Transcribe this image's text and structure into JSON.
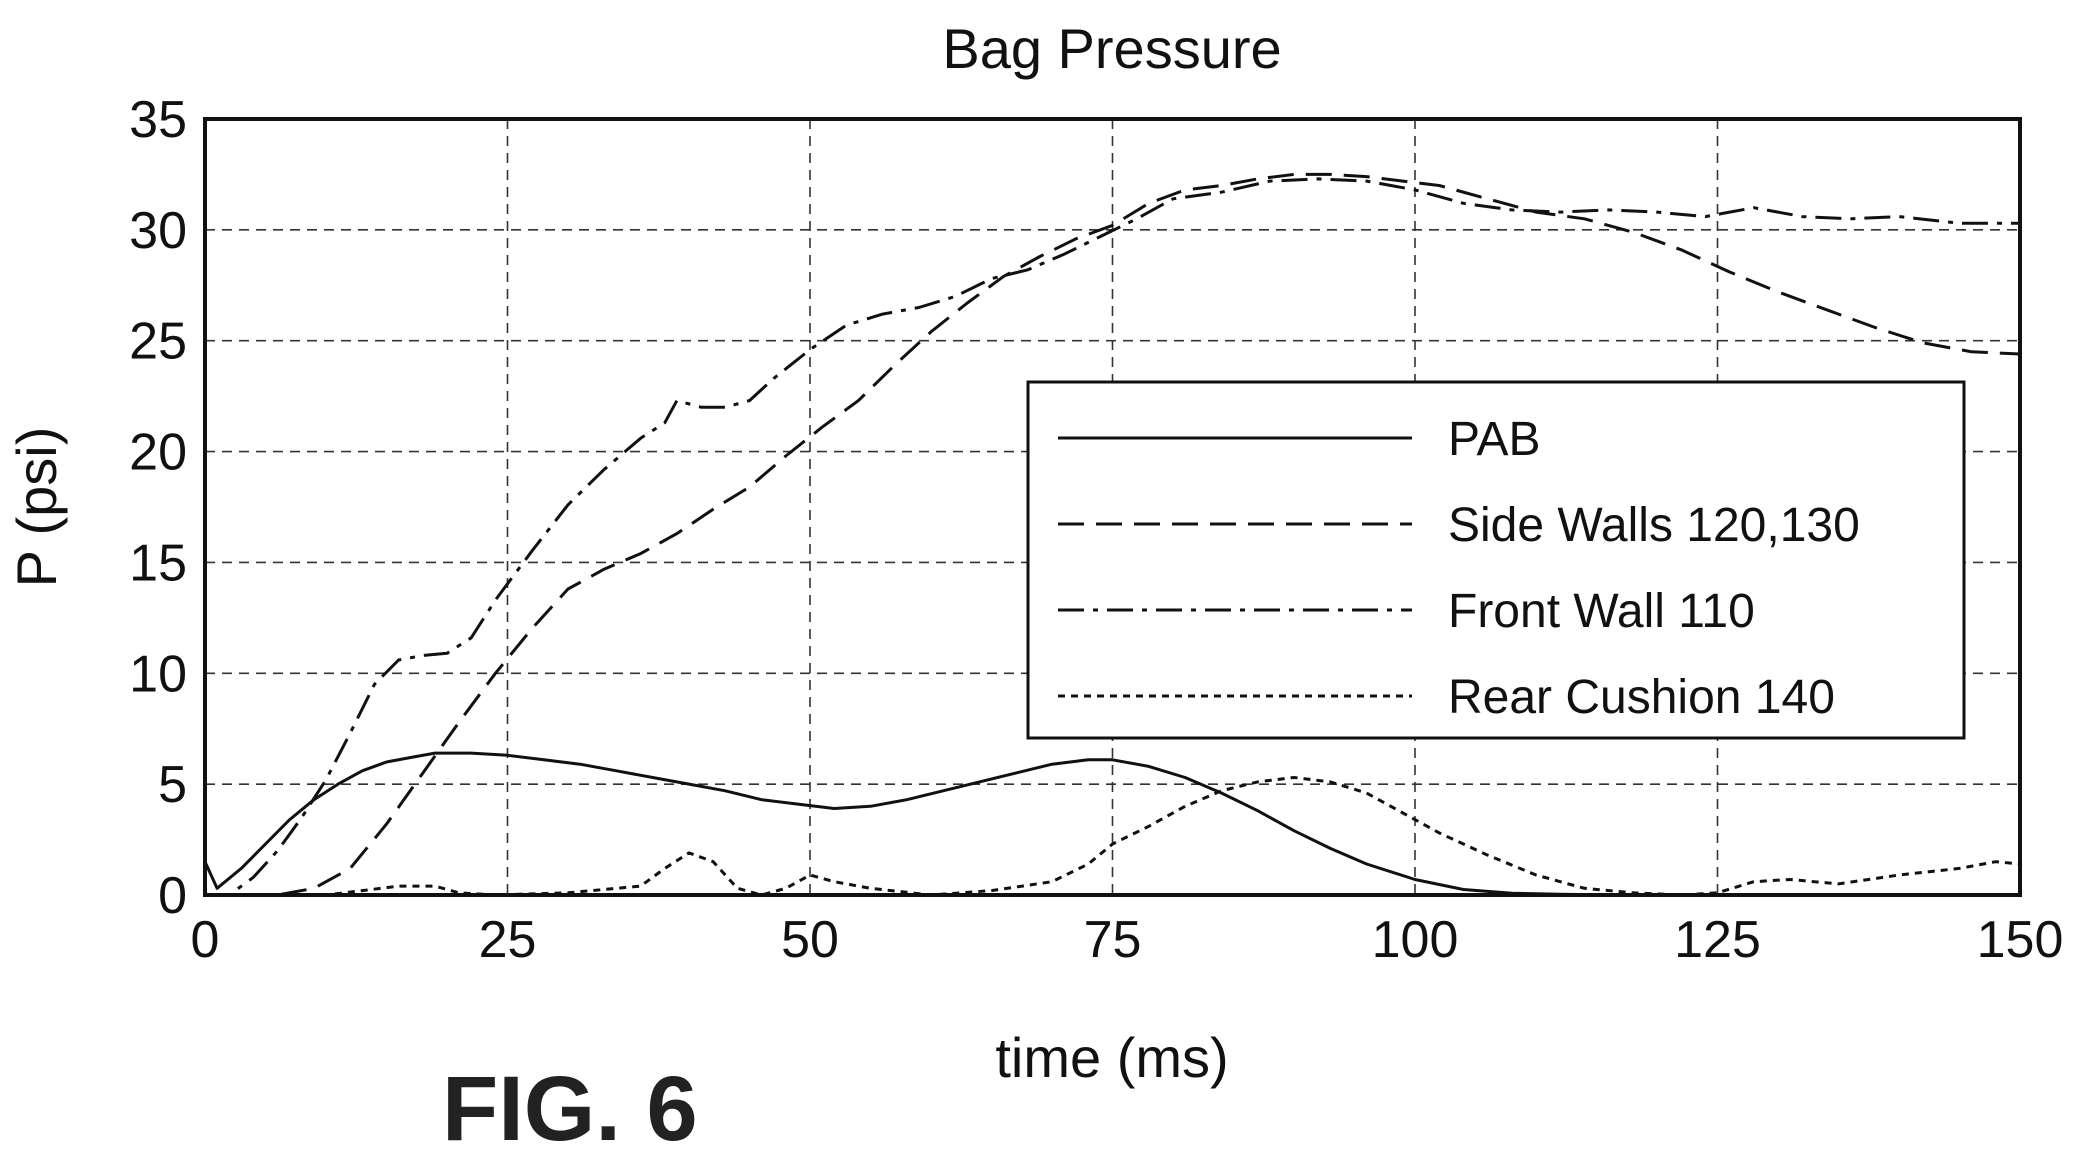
{
  "figure_label": "FIG. 6",
  "chart_data": {
    "type": "line",
    "title": "Bag Pressure",
    "xlabel": "time (ms)",
    "ylabel": "P (psi)",
    "xlim": [
      0,
      150
    ],
    "ylim": [
      0,
      35
    ],
    "xticks": [
      0,
      25,
      50,
      75,
      100,
      125,
      150
    ],
    "yticks": [
      0,
      5,
      10,
      15,
      20,
      25,
      30,
      35
    ],
    "grid": true,
    "legend_position": "center-right",
    "series": [
      {
        "name": "PAB",
        "style": "solid",
        "x": [
          0,
          1,
          3,
          5,
          7,
          9,
          11,
          13,
          15,
          17,
          19,
          22,
          25,
          28,
          31,
          34,
          37,
          40,
          43,
          46,
          49,
          52,
          55,
          58,
          61,
          64,
          67,
          70,
          73,
          75,
          78,
          81,
          84,
          87,
          90,
          93,
          96,
          100,
          104,
          108,
          112,
          116,
          120,
          125,
          130,
          140,
          150
        ],
        "y": [
          1.5,
          0.3,
          1.2,
          2.3,
          3.4,
          4.3,
          5.0,
          5.6,
          6.0,
          6.2,
          6.4,
          6.4,
          6.3,
          6.1,
          5.9,
          5.6,
          5.3,
          5.0,
          4.7,
          4.3,
          4.1,
          3.9,
          4.0,
          4.3,
          4.7,
          5.1,
          5.5,
          5.9,
          6.1,
          6.1,
          5.8,
          5.3,
          4.6,
          3.8,
          2.9,
          2.1,
          1.4,
          0.7,
          0.25,
          0.08,
          0.03,
          0,
          0,
          0,
          0,
          0,
          0
        ]
      },
      {
        "name": "Side Walls 120,130",
        "style": "dashed",
        "x": [
          0,
          3,
          6,
          9,
          12,
          15,
          18,
          21,
          24,
          27,
          30,
          33,
          36,
          39,
          42,
          45,
          48,
          51,
          54,
          57,
          60,
          63,
          66,
          69,
          72,
          75,
          78,
          81,
          84,
          87,
          90,
          93,
          96,
          99,
          102,
          106,
          110,
          114,
          118,
          122,
          126,
          130,
          134,
          138,
          142,
          146,
          150
        ],
        "y": [
          0,
          0,
          0,
          0.3,
          1.2,
          3.2,
          5.5,
          7.8,
          10.0,
          12.0,
          13.8,
          14.7,
          15.4,
          16.3,
          17.4,
          18.4,
          19.8,
          21.1,
          22.3,
          23.9,
          25.4,
          26.7,
          27.9,
          28.8,
          29.6,
          30.2,
          31.2,
          31.8,
          32.0,
          32.3,
          32.5,
          32.5,
          32.4,
          32.2,
          32.0,
          31.4,
          30.8,
          30.5,
          29.9,
          29.1,
          28.1,
          27.2,
          26.4,
          25.6,
          24.9,
          24.5,
          24.4
        ]
      },
      {
        "name": "Front Wall 110",
        "style": "dash-dot",
        "x": [
          0,
          2,
          4,
          6,
          8,
          10,
          12,
          14,
          16,
          18,
          20,
          22,
          24,
          27,
          30,
          33,
          36,
          38,
          39,
          41,
          43,
          45,
          47,
          50,
          53,
          56,
          59,
          62,
          65,
          68,
          71,
          74,
          77,
          80,
          84,
          88,
          92,
          96,
          100,
          104,
          108,
          112,
          116,
          120,
          124,
          128,
          132,
          136,
          140,
          145,
          150
        ],
        "y": [
          0,
          0,
          0.8,
          2.0,
          3.5,
          5.2,
          7.3,
          9.5,
          10.6,
          10.8,
          10.9,
          11.6,
          13.3,
          15.5,
          17.6,
          19.2,
          20.6,
          21.3,
          22.3,
          22.0,
          22.0,
          22.3,
          23.3,
          24.6,
          25.7,
          26.2,
          26.5,
          27.0,
          27.8,
          28.2,
          28.9,
          29.7,
          30.5,
          31.4,
          31.7,
          32.2,
          32.3,
          32.2,
          31.8,
          31.2,
          30.9,
          30.8,
          30.9,
          30.8,
          30.6,
          31.0,
          30.6,
          30.5,
          30.6,
          30.3,
          30.3
        ]
      },
      {
        "name": "Rear Cushion 140",
        "style": "dotted",
        "x": [
          0,
          5,
          10,
          13,
          16,
          19,
          21,
          24,
          30,
          36,
          38,
          40,
          42,
          44,
          46,
          48,
          50,
          52,
          55,
          60,
          65,
          70,
          73,
          75,
          78,
          81,
          84,
          87,
          90,
          93,
          96,
          99,
          102,
          106,
          110,
          114,
          118,
          122,
          125,
          128,
          131,
          135,
          140,
          145,
          148,
          150
        ],
        "y": [
          0,
          0,
          0,
          0.2,
          0.4,
          0.4,
          0.1,
          0,
          0.1,
          0.4,
          1.2,
          1.9,
          1.5,
          0.3,
          0,
          0.3,
          0.9,
          0.6,
          0.3,
          0,
          0.2,
          0.6,
          1.4,
          2.3,
          3.1,
          4.0,
          4.7,
          5.1,
          5.3,
          5.1,
          4.6,
          3.7,
          2.8,
          1.8,
          0.9,
          0.3,
          0.1,
          0,
          0.1,
          0.6,
          0.7,
          0.5,
          0.9,
          1.2,
          1.5,
          1.4
        ]
      }
    ]
  }
}
